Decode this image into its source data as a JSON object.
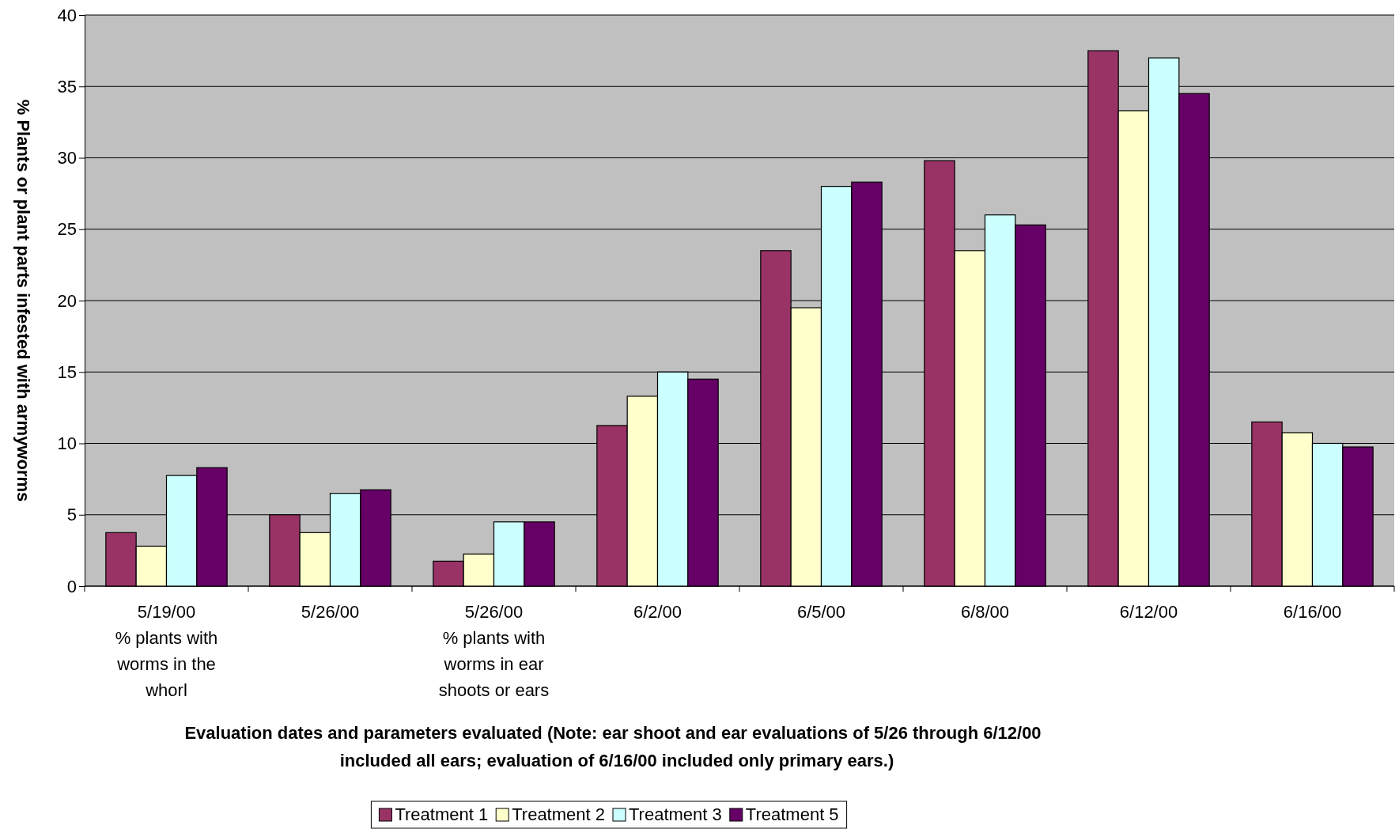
{
  "chart_data": {
    "type": "bar",
    "ylabel": "% Plants or plant parts infested with armyworms",
    "xlabel": "Evaluation dates and parameters evaluated (Note: ear shoot and ear evaluations of 5/26 through 6/12/00\nincluded all ears; evaluation of 6/16/00 included only primary ears.)",
    "categories": [
      "5/19/00\n% plants with\nworms in the\nwhorl",
      "5/26/00",
      "5/26/00\n% plants with\nworms in ear\nshoots or ears",
      "6/2/00",
      "6/5/00",
      "6/8/00",
      "6/12/00",
      "6/16/00"
    ],
    "series": [
      {
        "name": "Treatment 1",
        "color": "#993366",
        "values": [
          3.75,
          5.0,
          1.75,
          11.25,
          23.5,
          29.8,
          37.5,
          11.5
        ]
      },
      {
        "name": "Treatment 2",
        "color": "#ffffcc",
        "values": [
          2.8,
          3.75,
          2.25,
          13.3,
          19.5,
          23.5,
          33.3,
          10.75
        ]
      },
      {
        "name": "Treatment 3",
        "color": "#ccffff",
        "values": [
          7.75,
          6.5,
          4.5,
          15,
          28,
          26,
          37,
          10
        ]
      },
      {
        "name": "Treatment 5",
        "color": "#660066",
        "values": [
          8.3,
          6.75,
          4.5,
          14.5,
          28.3,
          25.3,
          34.5,
          9.75
        ]
      }
    ],
    "ylim": [
      0,
      40
    ],
    "yticks": [
      0,
      5,
      10,
      15,
      20,
      25,
      30,
      35,
      40
    ],
    "grid": "y",
    "legend": "bottom"
  }
}
